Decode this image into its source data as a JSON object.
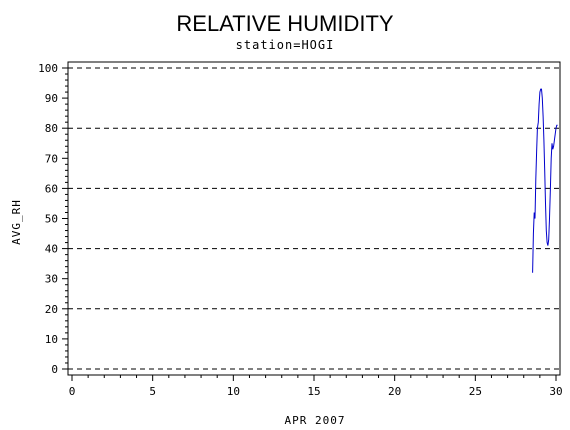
{
  "chart_data": {
    "type": "line",
    "title": "RELATIVE HUMIDITY",
    "subtitle": "station=HOGI",
    "xlabel": "APR 2007",
    "ylabel": "AVG_RH",
    "xlim": [
      0,
      30
    ],
    "ylim": [
      0,
      100
    ],
    "xticks": [
      0,
      5,
      10,
      15,
      20,
      25,
      30
    ],
    "yticks": [
      0,
      10,
      20,
      30,
      40,
      50,
      60,
      70,
      80,
      90,
      100
    ],
    "reference_lines_y": [
      0,
      20,
      40,
      60,
      80,
      100
    ],
    "line_color": "#0000cc",
    "gridline_style": "dashed",
    "series": [
      {
        "x": [
          28.55,
          28.6,
          28.65,
          28.7,
          28.75,
          28.8,
          28.85,
          28.9,
          28.95,
          29.0,
          29.05,
          29.1,
          29.15,
          29.2,
          29.25,
          29.3,
          29.35,
          29.4,
          29.45,
          29.5,
          29.55,
          29.6,
          29.65,
          29.7,
          29.75,
          29.8,
          29.85,
          29.9,
          29.95,
          30.0,
          30.05,
          30.1
        ],
        "values": [
          32,
          45,
          52,
          50,
          63,
          72,
          80,
          82,
          88,
          92,
          93,
          93,
          90,
          84,
          76,
          66,
          55,
          46,
          42,
          41,
          43,
          50,
          60,
          70,
          75,
          73,
          74,
          76,
          78,
          80,
          81,
          81
        ]
      }
    ]
  }
}
